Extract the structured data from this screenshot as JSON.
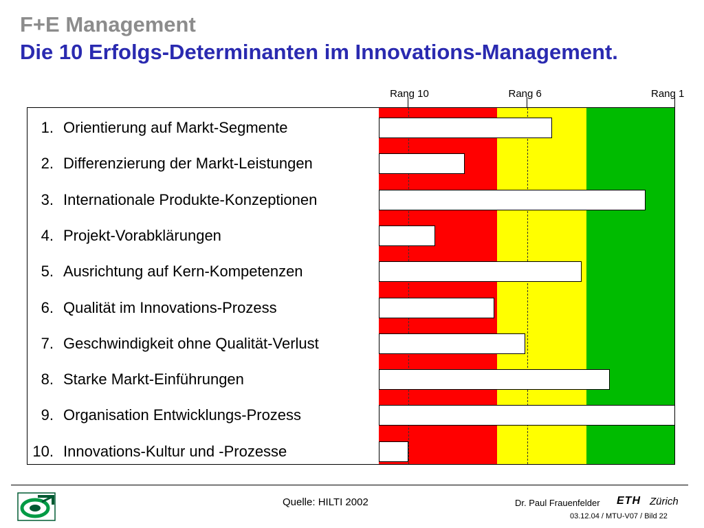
{
  "header": {
    "title": "F+E Management",
    "subtitle": "Die 10 Erfolgs-Determinanten im Innovations-Management."
  },
  "colors": {
    "red_zone": "#ff0000",
    "yellow_zone": "#ffff00",
    "green_zone": "#00bb00",
    "title_gray": "#8c8c8c",
    "title_blue": "#2a2ab0"
  },
  "chart_data": {
    "type": "bar",
    "orientation": "horizontal",
    "rank_labels": [
      "Rang 10",
      "Rang 6",
      "Rang 1"
    ],
    "zones": [
      {
        "color": "red",
        "from": 11,
        "to": 7
      },
      {
        "color": "yellow",
        "from": 7,
        "to": 4
      },
      {
        "color": "green",
        "from": 4,
        "to": 1
      }
    ],
    "dashed_lines_at_rank": [
      10,
      6
    ],
    "categories": [
      {
        "num": "1.",
        "label": "Orientierung auf Markt-Segmente",
        "rank": 5.15
      },
      {
        "num": "2.",
        "label": "Differenzierung der Markt-Leistungen",
        "rank": 8.1
      },
      {
        "num": "3.",
        "label": "Internationale Produkte-Konzeptionen",
        "rank": 2.0
      },
      {
        "num": "4.",
        "label": "Projekt-Vorabklärungen",
        "rank": 9.1
      },
      {
        "num": "5.",
        "label": "Ausrichtung auf Kern-Kompetenzen",
        "rank": 4.15
      },
      {
        "num": "6.",
        "label": "Qualität im Innovations-Prozess",
        "rank": 7.1
      },
      {
        "num": "7.",
        "label": "Geschwindigkeit ohne Qualität-Verlust",
        "rank": 6.05
      },
      {
        "num": "8.",
        "label": "Starke Markt-Einführungen",
        "rank": 3.2
      },
      {
        "num": "9.",
        "label": "Organisation Entwicklungs-Prozess",
        "rank": 1.0
      },
      {
        "num": "10.",
        "label": "Innovations-Kultur und -Prozesse",
        "rank": 10.0
      }
    ],
    "xlim": [
      11,
      1
    ]
  },
  "footer": {
    "source": "Quelle: HILTI 2002",
    "author": "Dr. Paul Frauenfelder",
    "eth": "ETH",
    "zurich": "Zürich",
    "page_info": "03.12.04 / MTU-V07 / Bild 22"
  }
}
